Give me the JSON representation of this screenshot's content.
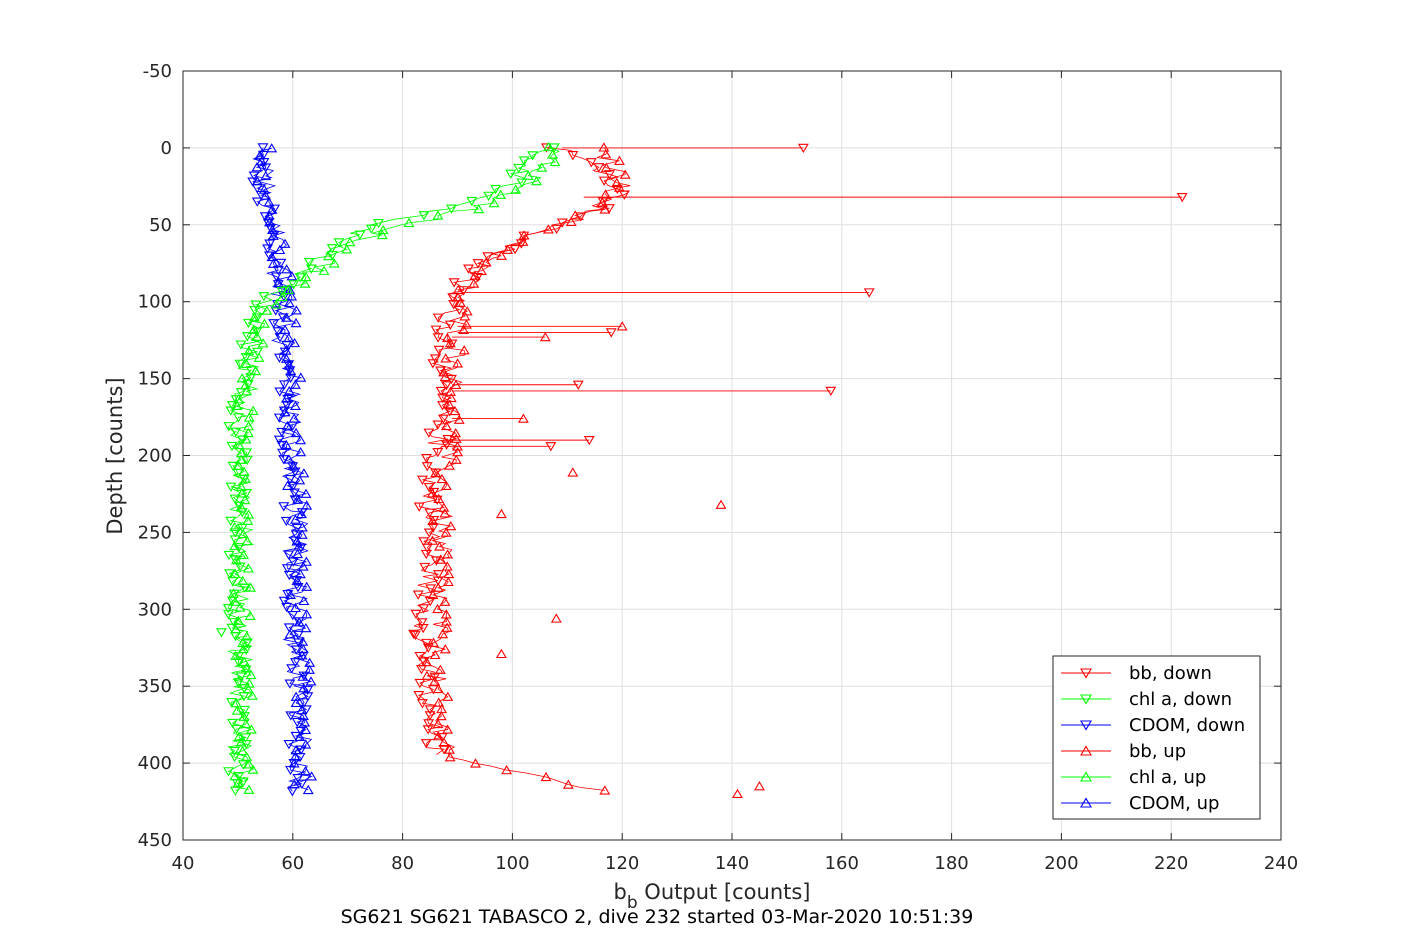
{
  "chart_data": {
    "type": "scatter",
    "title": "",
    "caption": "SG621 SG621 TABASCO 2, dive 232 started 03-Mar-2020 10:51:39",
    "xlabel": {
      "main": "b",
      "sub": "b",
      "rest": " Output [counts]"
    },
    "ylabel": "Depth [counts]",
    "xlim": [
      40,
      240
    ],
    "ylim": [
      -50,
      450
    ],
    "y_reversed": true,
    "grid": true,
    "legend_position": "bottom-right",
    "xticks": [
      40,
      60,
      80,
      100,
      120,
      140,
      160,
      180,
      200,
      220,
      240
    ],
    "yticks": [
      -50,
      0,
      50,
      100,
      150,
      200,
      250,
      300,
      350,
      400,
      450
    ],
    "colors": {
      "bb": "#ff0000",
      "chl": "#00ff00",
      "cdom": "#0000ff"
    },
    "profiles": {
      "bb_down": [
        [
          108,
          0
        ],
        [
          113,
          8
        ],
        [
          118,
          18
        ],
        [
          120,
          30
        ],
        [
          115,
          42
        ],
        [
          108,
          50
        ],
        [
          103,
          58
        ],
        [
          99,
          65
        ],
        [
          96,
          72
        ],
        [
          93,
          80
        ],
        [
          90,
          90
        ],
        [
          89,
          100
        ],
        [
          88,
          115
        ],
        [
          88,
          130
        ],
        [
          87,
          150
        ],
        [
          87,
          175
        ],
        [
          86,
          200
        ],
        [
          85,
          225
        ],
        [
          85,
          250
        ],
        [
          85,
          275
        ],
        [
          84,
          300
        ],
        [
          84,
          325
        ],
        [
          84,
          350
        ],
        [
          85,
          375
        ],
        [
          86,
          395
        ]
      ],
      "bb_up": [
        [
          115,
          0
        ],
        [
          118,
          10
        ],
        [
          120,
          22
        ],
        [
          118,
          35
        ],
        [
          110,
          48
        ],
        [
          104,
          56
        ],
        [
          100,
          64
        ],
        [
          96,
          72
        ],
        [
          93,
          82
        ],
        [
          91,
          95
        ],
        [
          90,
          110
        ],
        [
          90,
          130
        ],
        [
          89,
          150
        ],
        [
          89,
          175
        ],
        [
          88,
          200
        ],
        [
          87,
          225
        ],
        [
          87,
          250
        ],
        [
          87,
          275
        ],
        [
          87,
          300
        ],
        [
          86,
          325
        ],
        [
          86,
          350
        ],
        [
          87,
          375
        ],
        [
          89,
          395
        ],
        [
          93,
          402
        ],
        [
          100,
          406
        ],
        [
          107,
          410
        ],
        [
          112,
          414
        ],
        [
          115,
          418
        ]
      ],
      "chl_down": [
        [
          106,
          0
        ],
        [
          103,
          10
        ],
        [
          100,
          22
        ],
        [
          95,
          34
        ],
        [
          85,
          42
        ],
        [
          75,
          50
        ],
        [
          68,
          62
        ],
        [
          64,
          76
        ],
        [
          59,
          88
        ],
        [
          55,
          98
        ],
        [
          53,
          110
        ],
        [
          52,
          130
        ],
        [
          51,
          150
        ],
        [
          50,
          175
        ],
        [
          50,
          200
        ],
        [
          50,
          225
        ],
        [
          50,
          250
        ],
        [
          50,
          275
        ],
        [
          50,
          300
        ],
        [
          50,
          325
        ],
        [
          50,
          350
        ],
        [
          50,
          375
        ],
        [
          50,
          400
        ],
        [
          50,
          420
        ]
      ],
      "chl_up": [
        [
          108,
          0
        ],
        [
          106,
          12
        ],
        [
          102,
          24
        ],
        [
          96,
          36
        ],
        [
          88,
          44
        ],
        [
          78,
          52
        ],
        [
          70,
          64
        ],
        [
          65,
          78
        ],
        [
          60,
          90
        ],
        [
          56,
          100
        ],
        [
          54,
          112
        ],
        [
          53,
          130
        ],
        [
          52,
          150
        ],
        [
          51,
          175
        ],
        [
          51,
          200
        ],
        [
          51,
          225
        ],
        [
          51,
          250
        ],
        [
          51,
          275
        ],
        [
          51,
          300
        ],
        [
          51,
          325
        ],
        [
          51,
          350
        ],
        [
          51,
          375
        ],
        [
          51,
          400
        ],
        [
          51,
          420
        ]
      ],
      "cdom_down": [
        [
          54,
          0
        ],
        [
          54,
          20
        ],
        [
          55,
          40
        ],
        [
          56,
          60
        ],
        [
          57,
          80
        ],
        [
          58,
          100
        ],
        [
          58,
          125
        ],
        [
          59,
          150
        ],
        [
          59,
          175
        ],
        [
          59,
          200
        ],
        [
          60,
          225
        ],
        [
          60,
          250
        ],
        [
          60,
          275
        ],
        [
          60,
          300
        ],
        [
          60,
          325
        ],
        [
          61,
          350
        ],
        [
          61,
          375
        ],
        [
          61,
          400
        ],
        [
          61,
          420
        ]
      ],
      "cdom_up": [
        [
          55,
          0
        ],
        [
          55,
          20
        ],
        [
          56,
          40
        ],
        [
          57,
          60
        ],
        [
          58,
          80
        ],
        [
          59,
          100
        ],
        [
          59,
          125
        ],
        [
          60,
          150
        ],
        [
          60,
          175
        ],
        [
          60,
          200
        ],
        [
          61,
          225
        ],
        [
          61,
          250
        ],
        [
          61,
          275
        ],
        [
          61,
          300
        ],
        [
          61,
          325
        ],
        [
          62,
          350
        ],
        [
          62,
          375
        ],
        [
          62,
          400
        ],
        [
          62,
          420
        ]
      ]
    },
    "spikes_down": [
      [
        109,
        0,
        153
      ],
      [
        113,
        32,
        222
      ],
      [
        91,
        94,
        165
      ],
      [
        90,
        120,
        118
      ],
      [
        89,
        154,
        112
      ],
      [
        89,
        158,
        158
      ],
      [
        88,
        190,
        114
      ],
      [
        87,
        194,
        107
      ]
    ],
    "spikes_up": [
      [
        90,
        116,
        120
      ],
      [
        89,
        123,
        106
      ],
      [
        89,
        176,
        102
      ]
    ],
    "outliers_up": [
      [
        138,
        232
      ],
      [
        141,
        420
      ],
      [
        145,
        415
      ],
      [
        111,
        211
      ],
      [
        98,
        238
      ],
      [
        108,
        306
      ],
      [
        98,
        329
      ]
    ],
    "outliers_down": [
      [
        82,
        316
      ],
      [
        47,
        315
      ],
      [
        51,
        412
      ]
    ],
    "legend": [
      {
        "label": "bb, down",
        "color": "#ff0000",
        "marker": "down"
      },
      {
        "label": "chl a, down",
        "color": "#00ff00",
        "marker": "down"
      },
      {
        "label": "CDOM, down",
        "color": "#0000ff",
        "marker": "down"
      },
      {
        "label": "bb, up",
        "color": "#ff0000",
        "marker": "up"
      },
      {
        "label": "chl a, up",
        "color": "#00ff00",
        "marker": "up"
      },
      {
        "label": "CDOM, up",
        "color": "#0000ff",
        "marker": "up"
      }
    ]
  }
}
